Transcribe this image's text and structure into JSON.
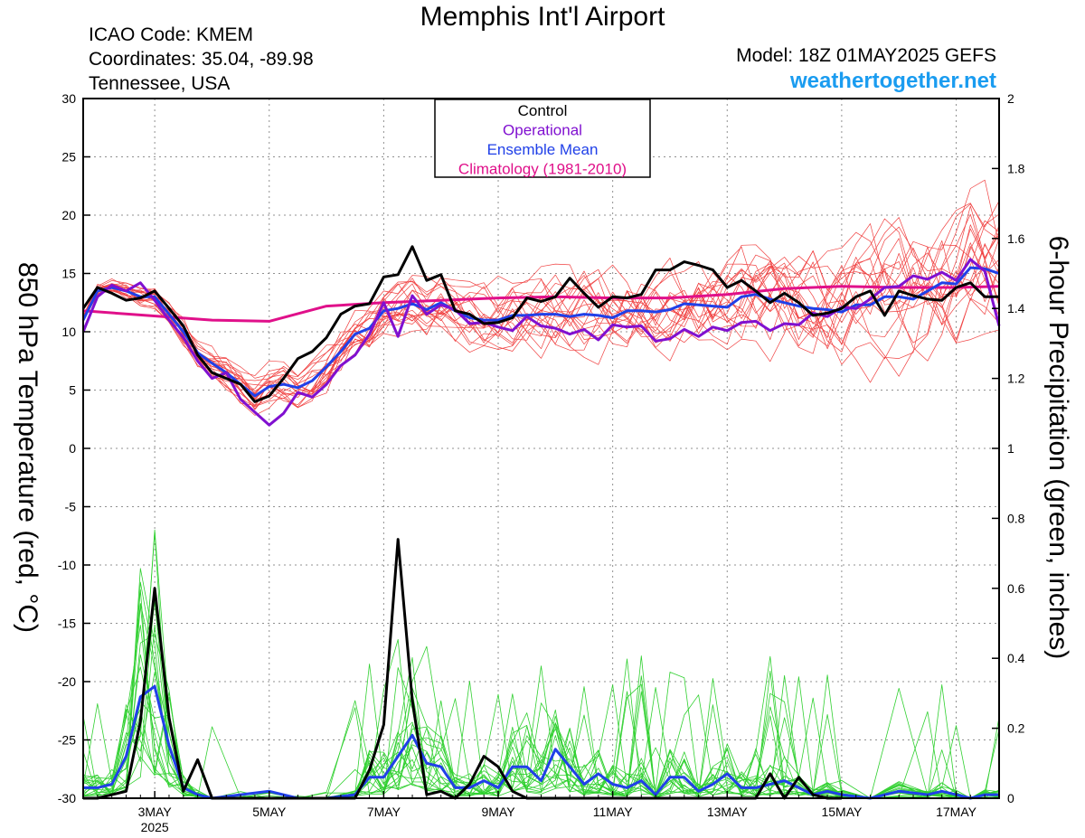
{
  "header": {
    "title": "Memphis Int'l Airport",
    "icao": "ICAO Code: KMEM",
    "coords": "Coordinates: 35.04, -89.98",
    "region": "Tennessee, USA",
    "model": "Model: 18Z 01MAY2025 GEFS",
    "site": "weathertogether.net"
  },
  "colors": {
    "control": "#000000",
    "operational": "#8010d0",
    "ensemble_mean": "#2040e8",
    "climatology": "#e0108a",
    "members_temp": "#f04040",
    "members_precip": "#30d030",
    "site": "#1a9cf0"
  },
  "chart_data": {
    "type": "line",
    "y_left_label": "850 hPa Temperature (red, °C)",
    "y_right_label": "6-hour Precipitation (green, inches)",
    "ylim_left": [
      -30,
      30
    ],
    "ylim_right": [
      0,
      2
    ],
    "y_left_ticks": [
      "30",
      "25",
      "20",
      "15",
      "10",
      "5",
      "0",
      "-5",
      "-10",
      "-15",
      "-20",
      "-25",
      "-30"
    ],
    "y_right_ticks": [
      "2",
      "1.8",
      "1.6",
      "1.4",
      "1.2",
      "1",
      "0.8",
      "0.6",
      "0.4",
      "0.2",
      "0"
    ],
    "xlim_days": [
      1.75,
      17.75
    ],
    "x_ticks": [
      {
        "day": 3,
        "label": "3MAY",
        "sub": "2025"
      },
      {
        "day": 5,
        "label": "5MAY"
      },
      {
        "day": 7,
        "label": "7MAY"
      },
      {
        "day": 9,
        "label": "9MAY"
      },
      {
        "day": 11,
        "label": "11MAY"
      },
      {
        "day": 13,
        "label": "13MAY"
      },
      {
        "day": 15,
        "label": "15MAY"
      },
      {
        "day": 17,
        "label": "17MAY"
      }
    ],
    "grid": true,
    "legend": {
      "position": "top-center",
      "entries": [
        {
          "key": "control",
          "label": "Control"
        },
        {
          "key": "operational",
          "label": "Operational"
        },
        {
          "key": "ensemble_mean",
          "label": "Ensemble Mean"
        },
        {
          "key": "climatology",
          "label": "Climatology (1981-2010)"
        }
      ]
    },
    "series": {
      "control_temp": {
        "x": [
          1.75,
          2,
          2.25,
          2.5,
          2.75,
          3,
          3.25,
          3.5,
          3.75,
          4,
          4.25,
          4.5,
          4.75,
          5,
          5.25,
          5.5,
          5.75,
          6,
          6.25,
          6.5,
          6.75,
          7,
          7.25,
          7.5,
          7.75,
          8,
          8.25,
          8.5,
          8.75,
          9,
          9.25,
          9.5,
          9.75,
          10,
          10.25,
          10.5,
          10.75,
          11,
          11.25,
          11.5,
          11.75,
          12,
          12.25,
          12.5,
          12.75,
          13,
          13.25,
          13.5,
          13.75,
          14,
          14.25,
          14.5,
          14.75,
          15,
          15.25,
          15.5,
          15.75,
          16,
          16.25,
          16.5,
          16.75,
          17,
          17.25,
          17.5,
          17.75
        ],
        "y": [
          12,
          13.8,
          13.3,
          12.7,
          12.9,
          13.5,
          12,
          10.5,
          8,
          6.5,
          6,
          5.5,
          4,
          4.5,
          6,
          7.7,
          8.3,
          9.5,
          11.5,
          12.2,
          12.4,
          14.7,
          14.9,
          17.3,
          14.4,
          14.9,
          11.8,
          11.5,
          10.7,
          10.8,
          11.2,
          12.9,
          12.6,
          13,
          14.6,
          13.3,
          12.1,
          13,
          12.9,
          13.2,
          15.3,
          15.3,
          16,
          15.7,
          15.3,
          13.8,
          14.4,
          13.5,
          12.5,
          13.3,
          12.5,
          11.4,
          11.6,
          12,
          13,
          13.5,
          11.4,
          13.5,
          13.1,
          12.8,
          12.7,
          13.8,
          14.2,
          13,
          13
        ]
      },
      "operational_temp": {
        "x": [
          1.75,
          2,
          2.25,
          2.5,
          2.75,
          3,
          3.25,
          3.5,
          3.75,
          4,
          4.25,
          4.5,
          4.75,
          5,
          5.25,
          5.5,
          5.75,
          6,
          6.25,
          6.5,
          6.75,
          7,
          7.25,
          7.5,
          7.75,
          8,
          8.25,
          8.5,
          8.75,
          9,
          9.25,
          9.5,
          9.75,
          10,
          10.25,
          10.5,
          10.75,
          11,
          11.25,
          11.5,
          11.75,
          12,
          12.25,
          12.5,
          12.75,
          13,
          13.25,
          13.5,
          13.75,
          14,
          14.25,
          14.5,
          14.75,
          15,
          15.25,
          15.5,
          15.75,
          16,
          16.25,
          16.5,
          16.75,
          17,
          17.25,
          17.5,
          17.75
        ],
        "y": [
          10,
          13,
          14,
          13.5,
          14.2,
          12.7,
          11,
          9.5,
          7.5,
          6,
          6.5,
          4.2,
          3.1,
          2,
          3,
          4.8,
          4.4,
          5.5,
          7.1,
          8,
          9.8,
          12.5,
          9.6,
          13.1,
          11.5,
          12.3,
          11.9,
          10.7,
          10.8,
          10.4,
          10.1,
          11.3,
          10.5,
          10.3,
          9.8,
          10.2,
          9.3,
          10.6,
          10.4,
          10.5,
          9.2,
          9.4,
          10.2,
          9.6,
          10.4,
          10.1,
          10.8,
          10.9,
          10.1,
          10.7,
          10.6,
          11.6,
          11.3,
          12.1,
          12,
          12.8,
          13.8,
          13.9,
          14.8,
          14.5,
          15.1,
          14.4,
          16.2,
          15.2,
          10.5
        ]
      },
      "ensemble_mean_temp": {
        "x": [
          1.75,
          2,
          2.25,
          2.5,
          2.75,
          3,
          3.25,
          3.5,
          3.75,
          4,
          4.25,
          4.5,
          4.75,
          5,
          5.25,
          5.5,
          5.75,
          6,
          6.25,
          6.5,
          6.75,
          7,
          7.25,
          7.5,
          7.75,
          8,
          8.25,
          8.5,
          8.75,
          9,
          9.25,
          9.5,
          9.75,
          10,
          10.25,
          10.5,
          10.75,
          11,
          11.25,
          11.5,
          11.75,
          12,
          12.25,
          12.5,
          12.75,
          13,
          13.25,
          13.5,
          13.75,
          14,
          14.25,
          14.5,
          14.75,
          15,
          15.25,
          15.5,
          15.75,
          16,
          16.25,
          16.5,
          16.75,
          17,
          17.25,
          17.5,
          17.75
        ],
        "y": [
          11,
          13.5,
          13.8,
          13.5,
          13,
          13,
          11.5,
          10,
          8.2,
          7.3,
          6.5,
          5.5,
          4.5,
          5.3,
          5.5,
          5.2,
          5.8,
          7,
          8.3,
          9.8,
          10.3,
          11.8,
          12,
          12.4,
          11.9,
          12.5,
          11.8,
          11.2,
          11,
          11,
          11.4,
          11.4,
          11.5,
          11.5,
          11.3,
          11.5,
          11.4,
          11.2,
          11.8,
          11.8,
          11.7,
          11.9,
          12.4,
          12.3,
          12.2,
          12.1,
          13,
          13.2,
          12.8,
          12.5,
          12.2,
          12,
          11.9,
          11.7,
          12.3,
          12.3,
          13,
          13,
          12.8,
          13.5,
          14.2,
          14.1,
          15.5,
          15.4,
          15
        ]
      },
      "climatology_temp": {
        "x": [
          1.75,
          4,
          5,
          6,
          7,
          8,
          9,
          10,
          11,
          12,
          13,
          14,
          15,
          16,
          17,
          17.75
        ],
        "y": [
          11.8,
          11,
          10.9,
          12.2,
          12.5,
          12.7,
          12.9,
          13,
          12.9,
          12.9,
          13.2,
          13.7,
          13.9,
          13.8,
          13.8,
          13.9
        ]
      },
      "control_precip": {
        "x": [
          1.75,
          2,
          2.25,
          2.5,
          2.75,
          3,
          3.25,
          3.5,
          3.75,
          4,
          6.5,
          6.75,
          7,
          7.25,
          7.5,
          7.75,
          8,
          8.25,
          8.5,
          8.75,
          9,
          9.25,
          9.5,
          9.75,
          13.5,
          13.75,
          14,
          14.25,
          14.5,
          14.75,
          15
        ],
        "y": [
          0,
          0,
          0.01,
          0.02,
          0.22,
          0.6,
          0.23,
          0.02,
          0.11,
          0,
          0,
          0.08,
          0.21,
          0.74,
          0.28,
          0.01,
          0.02,
          0,
          0.04,
          0.12,
          0.09,
          0.02,
          0,
          0,
          0,
          0.07,
          0,
          0.06,
          0.01,
          0,
          0
        ]
      },
      "ensemble_mean_precip": {
        "x": [
          1.75,
          2,
          2.25,
          2.5,
          2.75,
          3,
          3.25,
          3.5,
          3.75,
          4,
          4.5,
          5,
          5.5,
          6,
          6.5,
          6.75,
          7,
          7.25,
          7.5,
          7.75,
          8,
          8.25,
          8.5,
          8.75,
          9,
          9.25,
          9.5,
          9.75,
          10,
          10.25,
          10.5,
          10.75,
          11,
          11.25,
          11.5,
          11.75,
          12,
          12.25,
          12.5,
          12.75,
          13,
          13.25,
          13.5,
          13.75,
          14,
          14.25,
          14.5,
          14.75,
          15,
          15.5,
          16,
          16.5,
          16.75,
          17,
          17.25,
          17.5,
          17.75
        ],
        "y": [
          0.03,
          0.03,
          0.04,
          0.12,
          0.29,
          0.32,
          0.15,
          0.03,
          0.01,
          0,
          0.01,
          0.02,
          0,
          0,
          0.01,
          0.06,
          0.06,
          0.12,
          0.18,
          0.1,
          0.09,
          0.03,
          0.03,
          0.05,
          0.03,
          0.09,
          0.09,
          0.05,
          0.14,
          0.09,
          0.04,
          0.07,
          0.04,
          0.03,
          0.05,
          0.01,
          0.06,
          0.06,
          0.02,
          0.04,
          0.07,
          0.03,
          0.03,
          0.04,
          0.05,
          0.03,
          0.01,
          0.02,
          0.01,
          0,
          0.02,
          0.01,
          0.02,
          0.01,
          0,
          0.01,
          0.01
        ]
      }
    }
  }
}
